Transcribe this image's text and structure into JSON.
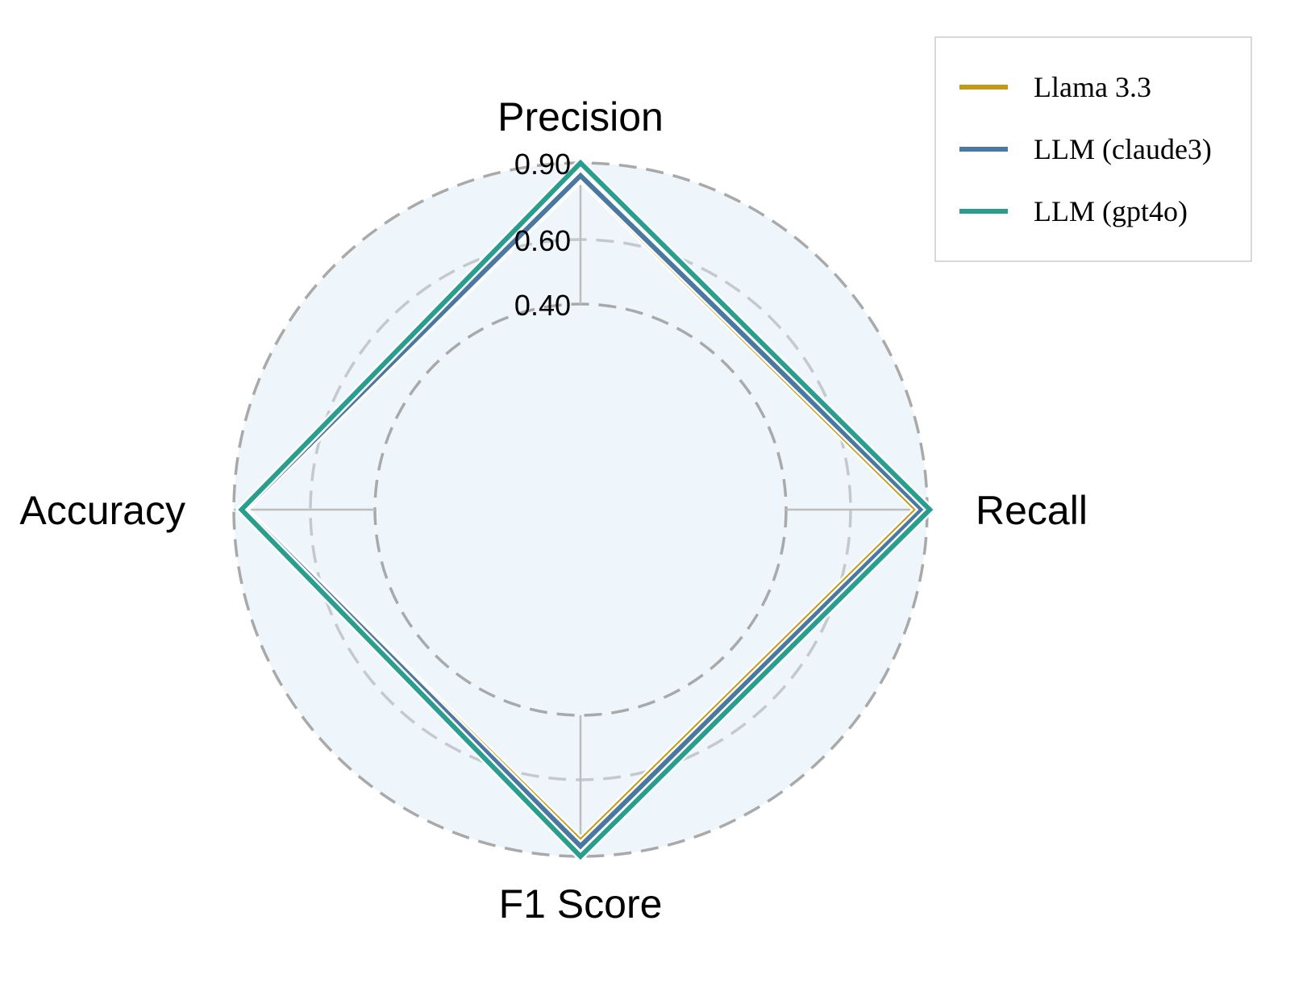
{
  "chart_data": {
    "type": "radar",
    "axes": [
      "Precision",
      "Recall",
      "F1 Score",
      "Accuracy"
    ],
    "radial_ticks": [
      0.4,
      0.6,
      0.9
    ],
    "radial_tick_labels": [
      "0.40",
      "0.60",
      "0.90"
    ],
    "rlim": [
      0.0,
      1.0
    ],
    "grid": true,
    "legend_position": "top-right",
    "series": [
      {
        "name": "Llama 3.3",
        "color": "#c39a12",
        "values": [
          0.84,
          0.86,
          0.84,
          0.86
        ]
      },
      {
        "name": "LLM (claude3)",
        "color": "#4a78a0",
        "values": [
          0.85,
          0.88,
          0.86,
          0.86
        ]
      },
      {
        "name": "LLM (gpt4o)",
        "color": "#2a9e8e",
        "values": [
          0.9,
          0.91,
          0.9,
          0.87
        ]
      }
    ]
  }
}
